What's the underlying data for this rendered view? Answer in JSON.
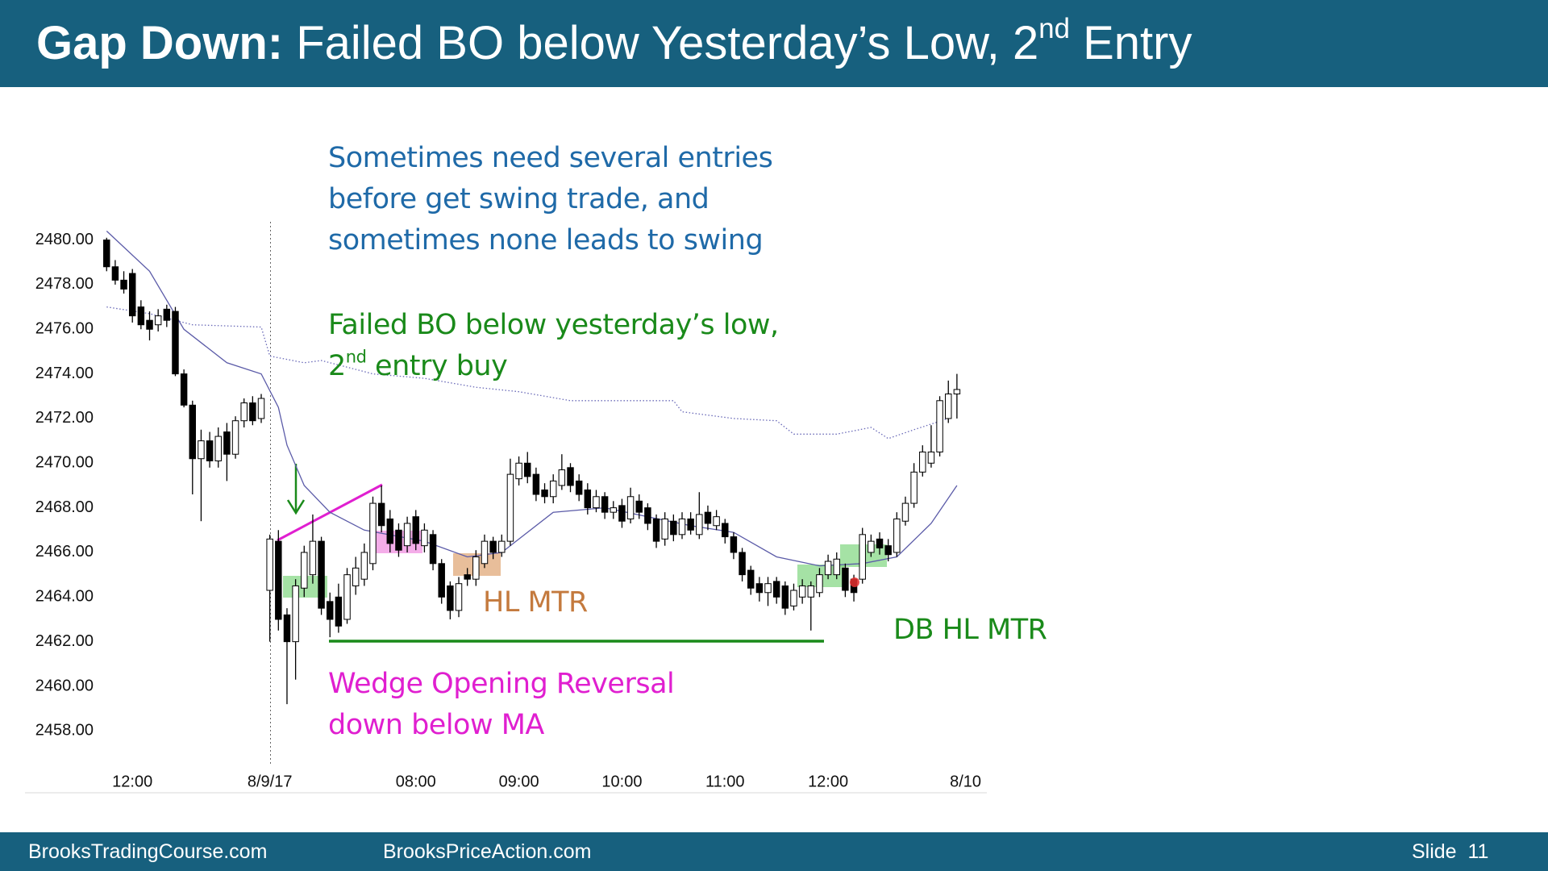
{
  "header": {
    "title_bold": "Gap Down:",
    "title": " Failed BO below Yesterday’s Low, 2",
    "title_sup": "nd",
    "title_tail": " Entry"
  },
  "chart_data": {
    "type": "candlestick",
    "xlim": [
      -1,
      101
    ],
    "xticks": [
      {
        "value": 3,
        "label": "12:00"
      },
      {
        "value": 19,
        "label": "8/9/17"
      },
      {
        "value": 36,
        "label": "08:00"
      },
      {
        "value": 48,
        "label": "09:00"
      },
      {
        "value": 60,
        "label": "10:00"
      },
      {
        "value": 72,
        "label": "11:00"
      },
      {
        "value": 84,
        "label": "12:00"
      },
      {
        "value": 100,
        "label": "8/10"
      }
    ],
    "ylim": [
      2457,
      2481
    ],
    "yticks": [
      {
        "value": 2480,
        "label": "2480.00"
      },
      {
        "value": 2478,
        "label": "2478.00"
      },
      {
        "value": 2476,
        "label": "2476.00"
      },
      {
        "value": 2474,
        "label": "2474.00"
      },
      {
        "value": 2472,
        "label": "2472.00"
      },
      {
        "value": 2470,
        "label": "2470.00"
      },
      {
        "value": 2468,
        "label": "2468.00"
      },
      {
        "value": 2466,
        "label": "2466.00"
      },
      {
        "value": 2464,
        "label": "2464.00"
      },
      {
        "value": 2462,
        "label": "2462.00"
      },
      {
        "value": 2460,
        "label": "2460.00"
      },
      {
        "value": 2458,
        "label": "2458.00"
      }
    ],
    "up_color": "#ffffff",
    "down_color": "#000000",
    "candles": {
      "open": [
        2480.0,
        2478.8,
        2478.2,
        2478.5,
        2477.0,
        2476.4,
        2476.2,
        2476.9,
        2476.8,
        2474.0,
        2472.6,
        2470.2,
        2471.0,
        2470.1,
        2471.4,
        2470.4,
        2471.9,
        2472.7,
        2472.0,
        2464.3,
        2466.5,
        2463.2,
        2462.0,
        2464.4,
        2465.0,
        2466.5,
        2463.8,
        2464.0,
        2463.0,
        2464.5,
        2464.8,
        2465.5,
        2468.2,
        2467.5,
        2467.0,
        2466.3,
        2467.6,
        2466.3,
        2466.8,
        2465.5,
        2464.5,
        2463.4,
        2465.0,
        2464.8,
        2465.5,
        2466.5,
        2466.0,
        2466.5,
        2469.3,
        2470.0,
        2469.5,
        2468.8,
        2468.5,
        2469.0,
        2469.8,
        2469.2,
        2468.8,
        2468.0,
        2468.5,
        2467.8,
        2468.1,
        2467.5,
        2468.3,
        2468.0,
        2467.5,
        2466.6,
        2467.4,
        2466.8,
        2467.5,
        2466.8,
        2467.8,
        2467.2,
        2467.3,
        2466.7,
        2466.0,
        2465.2,
        2464.6,
        2464.2,
        2464.7,
        2464.5,
        2463.6,
        2464.0,
        2464.0,
        2464.2,
        2465.0,
        2465.0,
        2465.3,
        2464.8,
        2464.8,
        2466.0,
        2466.6,
        2466.3,
        2466.0,
        2467.4,
        2468.2,
        2469.6,
        2470.0,
        2470.5,
        2472.0,
        2473.1
      ],
      "high": [
        2480.1,
        2479.1,
        2478.6,
        2478.7,
        2477.3,
        2476.8,
        2476.9,
        2477.1,
        2477.0,
        2474.2,
        2472.8,
        2471.5,
        2471.4,
        2471.6,
        2471.8,
        2472.1,
        2472.9,
        2473.0,
        2473.1,
        2466.8,
        2467.0,
        2463.5,
        2464.8,
        2466.3,
        2467.7,
        2466.7,
        2464.2,
        2464.6,
        2465.3,
        2465.8,
        2466.4,
        2468.5,
        2469.0,
        2467.9,
        2467.3,
        2467.6,
        2467.9,
        2467.3,
        2467.0,
        2465.7,
        2464.7,
        2464.9,
        2465.3,
        2466.1,
        2466.8,
        2466.7,
        2466.8,
        2470.2,
        2470.3,
        2470.5,
        2469.8,
        2469.1,
        2469.5,
        2470.4,
        2470.0,
        2469.5,
        2469.1,
        2468.8,
        2468.7,
        2468.3,
        2468.4,
        2468.9,
        2468.6,
        2468.2,
        2467.7,
        2467.8,
        2467.7,
        2467.8,
        2467.8,
        2468.7,
        2468.1,
        2467.9,
        2467.5,
        2466.9,
        2466.2,
        2465.4,
        2464.9,
        2464.9,
        2464.9,
        2464.7,
        2464.6,
        2464.8,
        2464.7,
        2465.3,
        2465.9,
        2466.0,
        2465.5,
        2465.0,
        2467.1,
        2466.8,
        2466.9,
        2466.6,
        2467.8,
        2468.5,
        2470.0,
        2470.8,
        2471.7,
        2473.0,
        2473.7,
        2474.0
      ],
      "low": [
        2478.6,
        2478.0,
        2477.6,
        2476.3,
        2476.0,
        2475.5,
        2475.9,
        2476.1,
        2473.9,
        2472.5,
        2468.6,
        2467.4,
        2469.8,
        2469.8,
        2469.2,
        2470.2,
        2471.6,
        2471.7,
        2471.8,
        2462.0,
        2462.5,
        2459.2,
        2460.3,
        2464.0,
        2464.6,
        2463.2,
        2462.2,
        2462.4,
        2462.8,
        2464.1,
        2464.5,
        2465.2,
        2466.9,
        2466.0,
        2465.8,
        2466.0,
        2466.1,
        2466.0,
        2465.2,
        2463.7,
        2463.0,
        2463.1,
        2464.5,
        2464.5,
        2465.3,
        2465.7,
        2465.8,
        2466.3,
        2469.0,
        2469.1,
        2468.3,
        2468.2,
        2468.2,
        2468.8,
        2468.7,
        2468.3,
        2467.7,
        2467.8,
        2467.5,
        2467.5,
        2467.1,
        2467.3,
        2467.5,
        2467.0,
        2466.2,
        2466.3,
        2466.5,
        2466.6,
        2466.8,
        2466.6,
        2467.0,
        2467.0,
        2466.4,
        2465.7,
        2464.7,
        2464.1,
        2463.8,
        2463.6,
        2463.7,
        2463.2,
        2463.4,
        2463.7,
        2462.5,
        2464.0,
        2464.8,
        2464.8,
        2464.0,
        2463.8,
        2464.6,
        2465.8,
        2465.9,
        2465.6,
        2465.8,
        2467.2,
        2468.0,
        2469.4,
        2469.8,
        2470.3,
        2471.8,
        2472.0
      ],
      "close": [
        2478.8,
        2478.2,
        2477.8,
        2476.6,
        2476.2,
        2476.0,
        2476.6,
        2476.4,
        2474.0,
        2472.6,
        2470.2,
        2471.0,
        2470.1,
        2471.2,
        2470.4,
        2471.9,
        2472.7,
        2471.9,
        2472.9,
        2466.6,
        2463.0,
        2462.0,
        2464.5,
        2466.0,
        2466.5,
        2463.5,
        2463.0,
        2462.7,
        2465.0,
        2465.3,
        2466.0,
        2468.2,
        2467.2,
        2466.4,
        2466.1,
        2467.3,
        2466.4,
        2467.0,
        2465.5,
        2464.0,
        2463.4,
        2464.6,
        2464.8,
        2465.8,
        2466.5,
        2466.0,
        2466.5,
        2469.5,
        2470.0,
        2469.4,
        2468.6,
        2468.5,
        2469.2,
        2469.7,
        2469.0,
        2468.6,
        2468.0,
        2468.5,
        2467.8,
        2468.0,
        2467.4,
        2468.5,
        2467.8,
        2467.3,
        2466.5,
        2467.5,
        2466.8,
        2467.5,
        2467.0,
        2467.7,
        2467.3,
        2467.6,
        2466.7,
        2466.0,
        2465.0,
        2464.4,
        2464.2,
        2464.6,
        2464.0,
        2463.5,
        2464.3,
        2464.5,
        2464.5,
        2465.0,
        2465.6,
        2465.7,
        2464.3,
        2464.2,
        2466.8,
        2466.5,
        2466.2,
        2465.9,
        2467.5,
        2468.2,
        2469.6,
        2470.5,
        2470.5,
        2472.8,
        2473.1,
        2473.3
      ]
    },
    "lines": [
      {
        "x": [
          0,
          5,
          9,
          14,
          18,
          20,
          21,
          23,
          26,
          30,
          37,
          42,
          46,
          52,
          58,
          63,
          68,
          73,
          78,
          83,
          88,
          92,
          96,
          99
        ],
        "values": [
          2480.4,
          2478.6,
          2476,
          2474.5,
          2474,
          2472.5,
          2470.8,
          2469,
          2467.8,
          2467,
          2466.5,
          2465.8,
          2466,
          2467.8,
          2468,
          2467.6,
          2467.2,
          2466.9,
          2465.8,
          2465.4,
          2465.5,
          2465.8,
          2467.3,
          2469
        ],
        "color": "#5b5ba8",
        "style": "solid"
      },
      {
        "x": [
          0,
          5,
          10,
          18,
          19,
          23,
          25,
          31,
          37,
          43,
          48,
          54,
          61,
          66,
          67,
          73,
          78,
          80,
          85,
          89,
          91,
          94,
          98
        ],
        "values": [
          2477,
          2476.7,
          2476.2,
          2476.1,
          2474.8,
          2474.5,
          2474.6,
          2474,
          2473.8,
          2473.4,
          2473.2,
          2472.8,
          2472.8,
          2472.8,
          2472.3,
          2472,
          2471.9,
          2471.3,
          2471.3,
          2471.6,
          2471.1,
          2471.5,
          2472
        ],
        "color": "#6a6ab8",
        "style": "dotted"
      }
    ],
    "annotations": {
      "swing": [
        "Sometimes need several entries",
        "before get swing trade, and",
        "sometimes none leads to swing"
      ],
      "failed_bo": {
        "line1": "Failed BO below yesterday’s low,",
        "line2": "2",
        "line2_sup": "nd",
        "line2_tail": " entry buy"
      },
      "hl_mtr": "HL MTR",
      "db_hl_mtr": "DB HL MTR",
      "wedge": [
        "Wedge Opening Reversal",
        "down below MA"
      ]
    }
  },
  "footer": {
    "left": "BrooksTradingCourse.com",
    "center": "BrooksPriceAction.com",
    "right": "Slide  11"
  }
}
